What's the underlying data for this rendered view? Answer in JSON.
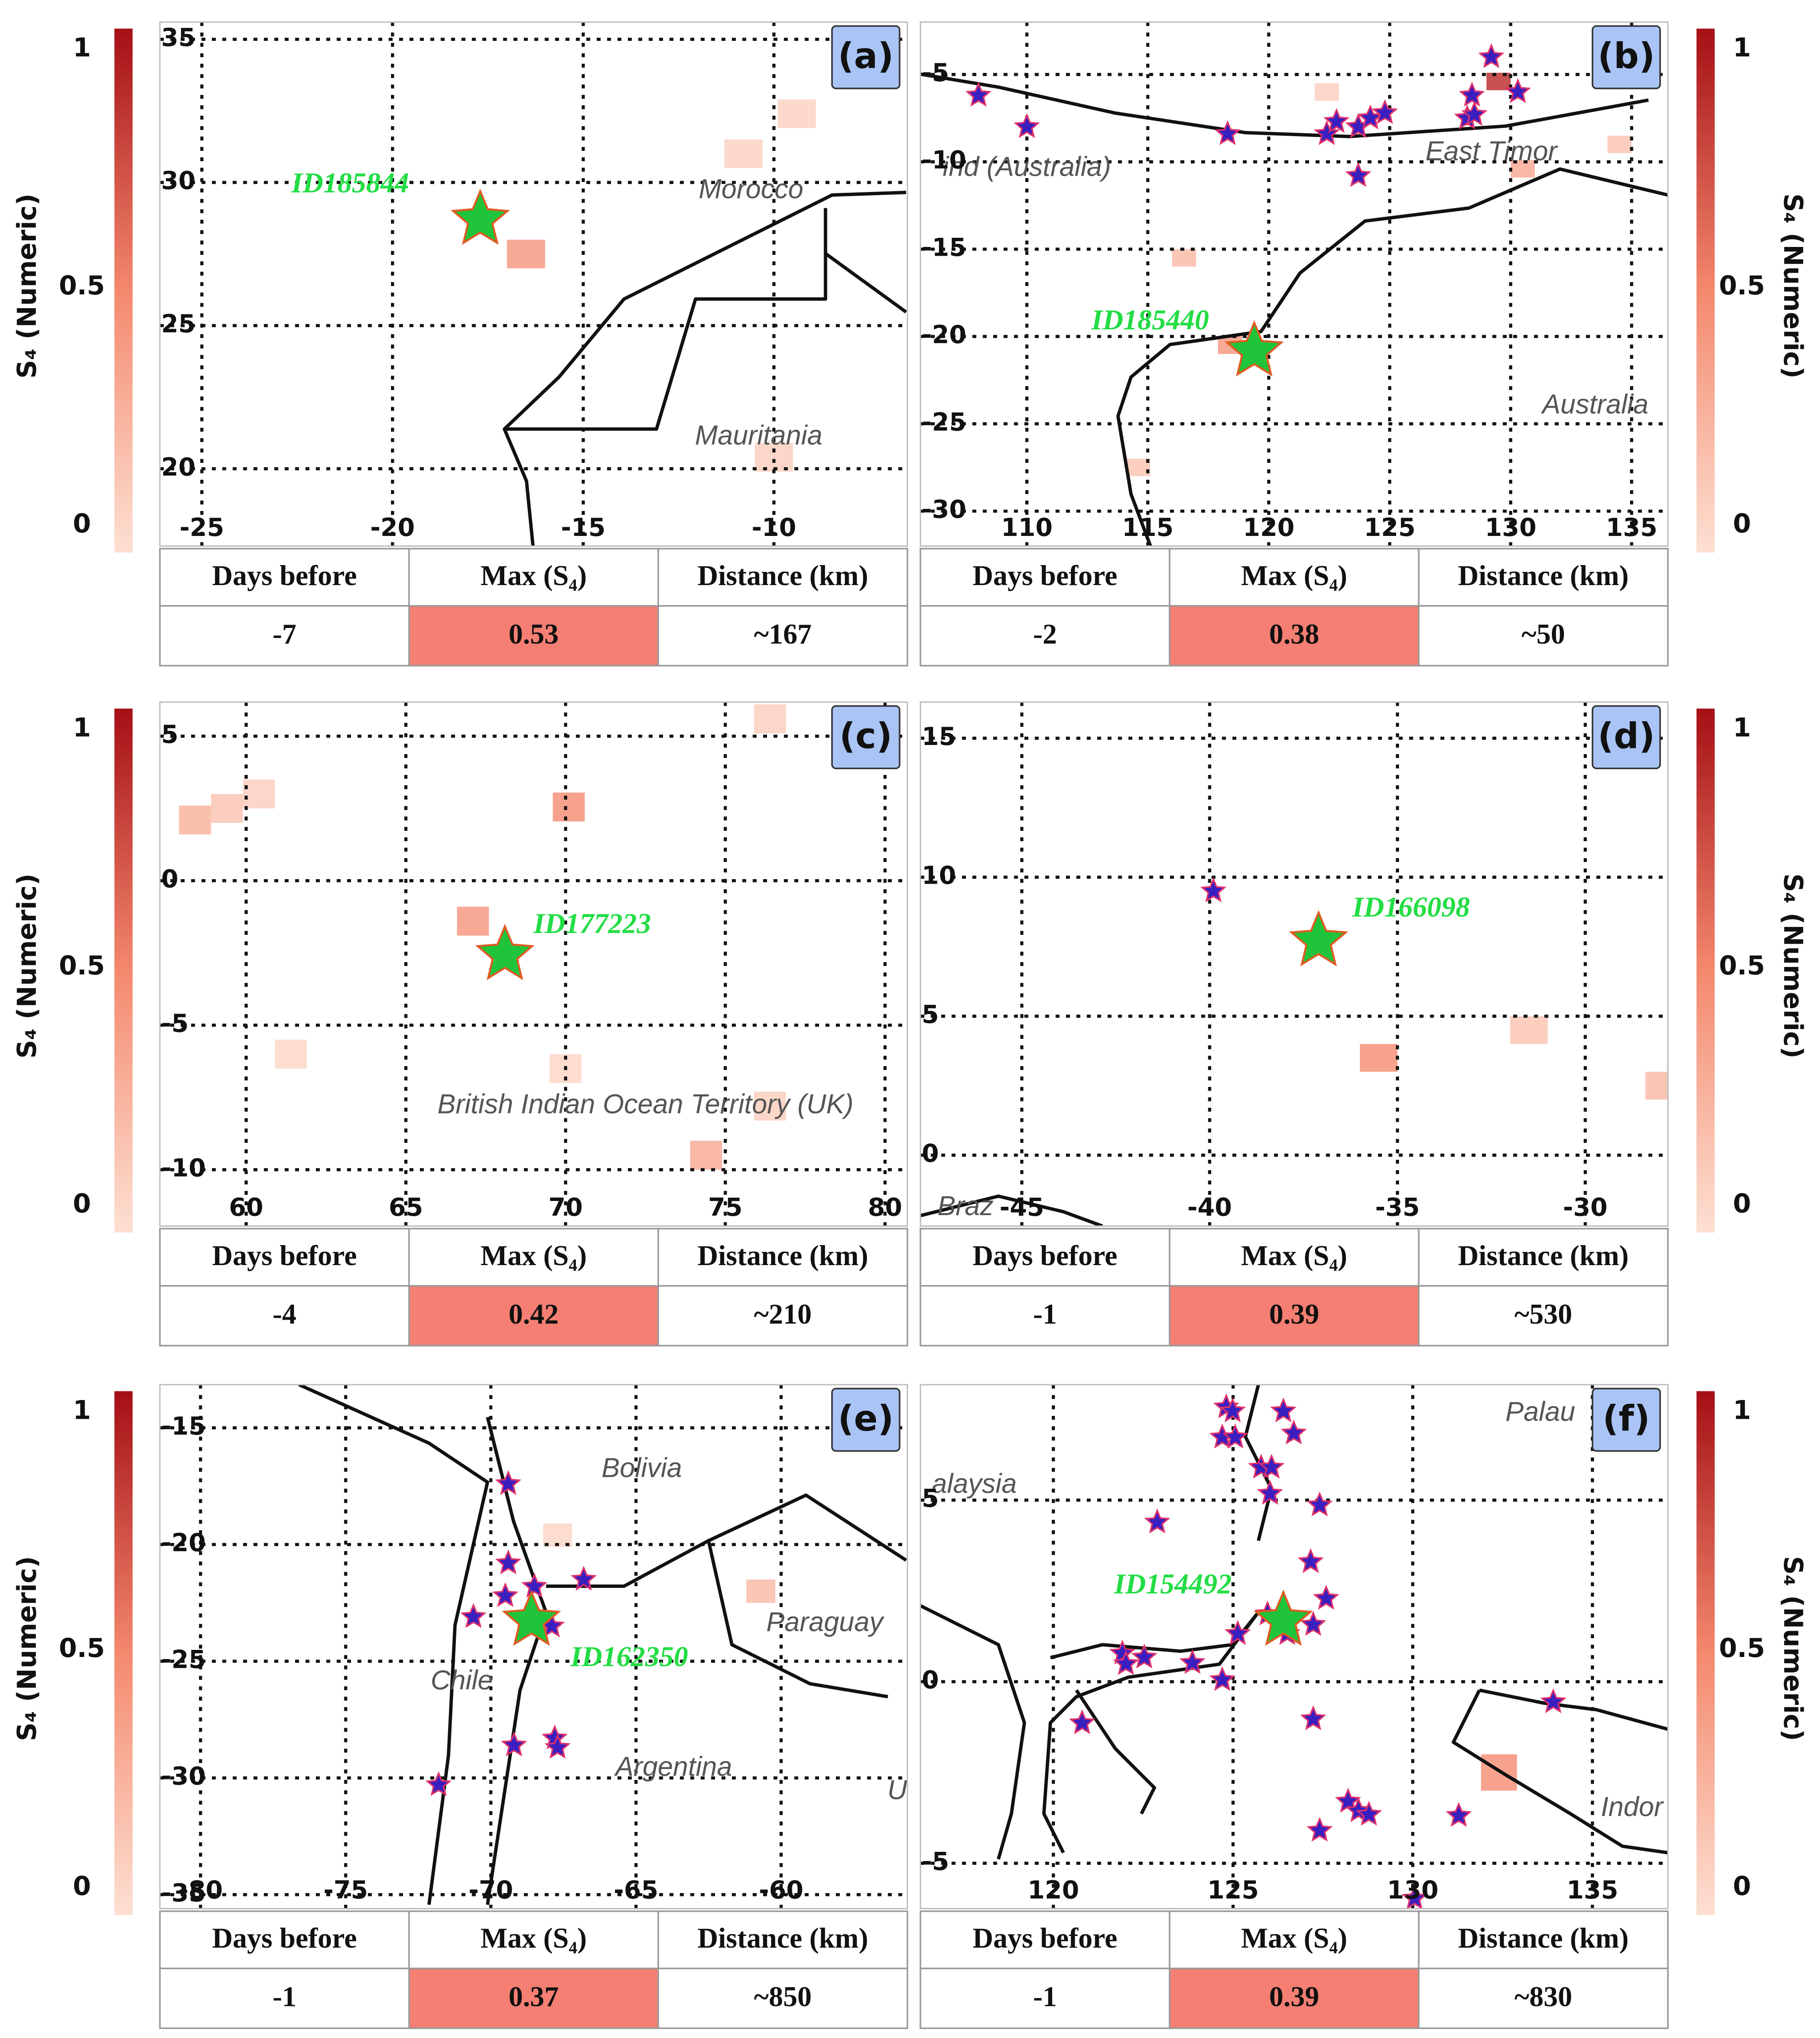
{
  "chart_data": [
    {
      "type": "map",
      "label": "(a)",
      "xlim": [
        -26.1,
        -6.5
      ],
      "ylim": [
        17.3,
        35.6
      ],
      "xticks": [
        -25,
        -20,
        -15,
        -10
      ],
      "yticks": [
        20,
        25,
        30,
        35
      ],
      "colorbar": {
        "label": "S₄ (Numeric)",
        "lim": [
          0,
          1
        ],
        "ticks": [
          0,
          0.5,
          1
        ],
        "side": "left"
      },
      "event": {
        "name": "ID185844",
        "x": -17.7,
        "y": 28.7
      },
      "stars": {
        "x": [],
        "y": []
      },
      "cell_size": 1,
      "cells": {
        "x": [
          -16.5,
          -10.8,
          -9.4,
          -10.0
        ],
        "y": [
          27.5,
          31.0,
          32.4,
          20.4
        ],
        "values": [
          0.4,
          0.08,
          0.08,
          0.1
        ]
      },
      "places": [
        {
          "name": "Morocco",
          "x": -10.6,
          "y": 29.7
        },
        {
          "name": "Mauritania",
          "x": -10.4,
          "y": 21.1
        }
      ],
      "table": {
        "header": [
          "Days before",
          "Max (S₄)",
          "Distance (km)"
        ],
        "row": [
          -7,
          0.53,
          "~167"
        ]
      }
    },
    {
      "type": "map",
      "label": "(b)",
      "xlim": [
        105.6,
        136.5
      ],
      "ylim": [
        -32.0,
        -2.0
      ],
      "xticks": [
        110,
        115,
        120,
        125,
        130,
        135
      ],
      "yticks": [
        -5,
        -10,
        -15,
        -20,
        -25,
        -30
      ],
      "colorbar": {
        "label": "S₄ (Numeric)",
        "lim": [
          0,
          1
        ],
        "ticks": [
          0,
          0.5,
          1
        ],
        "side": "right"
      },
      "event": {
        "name": "ID185440",
        "x": 119.4,
        "y": -20.85
      },
      "stars": {
        "x": [
          108.0,
          110.0,
          118.3,
          122.4,
          122.8,
          123.7,
          124.2,
          124.8,
          123.7,
          128.4,
          128.2,
          128.5,
          129.2,
          130.3
        ],
        "y": [
          -6.2,
          -8.0,
          -8.4,
          -8.4,
          -7.7,
          -8.0,
          -7.5,
          -7.2,
          -10.8,
          -6.2,
          -7.5,
          -7.3,
          -4.0,
          -6.0
        ]
      },
      "cell_size": 1,
      "cells": {
        "x": [
          129.5,
          130.5,
          116.5,
          118.4,
          134.5,
          122.4,
          114.6
        ],
        "y": [
          -5.4,
          -10.4,
          -15.5,
          -20.5,
          -9.0,
          -6.0,
          -27.5
        ],
        "values": [
          0.85,
          0.3,
          0.2,
          0.4,
          0.15,
          0.1,
          0.15
        ]
      },
      "places": [
        {
          "name": "ind (Australia)",
          "x": 110.0,
          "y": -10.4
        },
        {
          "name": "East Timor",
          "x": 129.2,
          "y": -9.5
        },
        {
          "name": "Australia",
          "x": 133.5,
          "y": -24.0
        }
      ],
      "table": {
        "header": [
          "Days before",
          "Max (S₄)",
          "Distance (km)"
        ],
        "row": [
          -2,
          0.38,
          "~50"
        ]
      }
    },
    {
      "type": "map",
      "label": "(c)",
      "xlim": [
        57.3,
        80.7
      ],
      "ylim": [
        -11.95,
        6.18
      ],
      "xticks": [
        60,
        65,
        70,
        75,
        80
      ],
      "yticks": [
        -10,
        -5,
        0,
        5
      ],
      "colorbar": {
        "label": "S₄ (Numeric)",
        "lim": [
          0,
          1
        ],
        "ticks": [
          0,
          0.5,
          1
        ],
        "side": "left"
      },
      "event": {
        "name": "ID177223",
        "x": 68.1,
        "y": -2.57
      },
      "stars": {
        "x": [],
        "y": []
      },
      "cell_size": 1,
      "cells": {
        "x": [
          67.1,
          70.1,
          58.4,
          60.4,
          59.4,
          61.4,
          74.4,
          76.4,
          76.4,
          70.0
        ],
        "y": [
          -1.4,
          2.55,
          2.1,
          3.0,
          2.5,
          -6.0,
          -9.5,
          5.6,
          -7.8,
          -6.5
        ],
        "values": [
          0.4,
          0.45,
          0.25,
          0.1,
          0.15,
          0.05,
          0.3,
          0.1,
          0.1,
          0.05
        ]
      },
      "places": [
        {
          "name": "British Indian Ocean Territory (UK)",
          "x": 72.5,
          "y": -7.8
        }
      ],
      "table": {
        "header": [
          "Days before",
          "Max (S₄)",
          "Distance (km)"
        ],
        "row": [
          -4,
          0.42,
          "~210"
        ]
      }
    },
    {
      "type": "map",
      "label": "(d)",
      "xlim": [
        -47.7,
        -27.8
      ],
      "ylim": [
        -2.55,
        16.3
      ],
      "xticks": [
        -45,
        -40,
        -35,
        -30
      ],
      "yticks": [
        0,
        5,
        10,
        15
      ],
      "colorbar": {
        "label": "S₄ (Numeric)",
        "lim": [
          0,
          1
        ],
        "ticks": [
          0,
          0.5,
          1
        ],
        "side": "right"
      },
      "event": {
        "name": "ID166098",
        "x": -37.1,
        "y": 7.7
      },
      "stars": {
        "x": [
          -39.9
        ],
        "y": [
          9.5
        ]
      },
      "cell_size": 1,
      "cells": {
        "x": [
          -35.5,
          -31.5,
          -27.9
        ],
        "y": [
          3.5,
          4.5,
          2.5
        ],
        "values": [
          0.45,
          0.15,
          0.2
        ]
      },
      "places": [
        {
          "name": "Braz",
          "x": -46.5,
          "y": -1.9
        }
      ],
      "table": {
        "header": [
          "Days before",
          "Max (S₄)",
          "Distance (km)"
        ],
        "row": [
          -1,
          0.39,
          "~530"
        ]
      }
    },
    {
      "type": "map",
      "label": "(e)",
      "xlim": [
        -81.4,
        -55.65
      ],
      "ylim": [
        -35.6,
        -13.15
      ],
      "xticks": [
        -80,
        -75,
        -70,
        -65,
        -60
      ],
      "yticks": [
        -15,
        -20,
        -25,
        -30,
        -35
      ],
      "colorbar": {
        "label": "S₄ (Numeric)",
        "lim": [
          0,
          1
        ],
        "ticks": [
          0,
          0.5,
          1
        ],
        "side": "left"
      },
      "event": {
        "name": "ID162350",
        "x": -68.6,
        "y": -23.26
      },
      "stars": {
        "x": [
          -69.4,
          -69.4,
          -69.5,
          -68.5,
          -66.8,
          -70.6,
          -69.2,
          -67.8,
          -67.7,
          -71.8,
          -67.9
        ],
        "y": [
          -17.4,
          -20.8,
          -22.2,
          -21.8,
          -21.5,
          -23.1,
          -28.6,
          -28.3,
          -28.7,
          -30.3,
          -23.5
        ]
      },
      "cell_size": 1,
      "cells": {
        "x": [
          -60.7,
          -67.7
        ],
        "y": [
          -22.0,
          -19.6
        ],
        "values": [
          0.2,
          0.05
        ]
      },
      "places": [
        {
          "name": "Bolivia",
          "x": -64.8,
          "y": -16.8
        },
        {
          "name": "Paraguay",
          "x": -58.5,
          "y": -23.4
        },
        {
          "name": "Chile",
          "x": -71.0,
          "y": -25.9
        },
        {
          "name": "Argentina",
          "x": -63.7,
          "y": -29.6
        },
        {
          "name": "U",
          "x": -56.0,
          "y": -30.6
        }
      ],
      "table": {
        "header": [
          "Days before",
          "Max (S₄)",
          "Distance (km)"
        ],
        "row": [
          -1,
          0.37,
          "~850"
        ]
      }
    },
    {
      "type": "map",
      "label": "(f)",
      "xlim": [
        116.3,
        137.1
      ],
      "ylim": [
        -6.25,
        8.18
      ],
      "xticks": [
        120,
        125,
        130,
        135
      ],
      "yticks": [
        -5,
        0,
        5
      ],
      "colorbar": {
        "label": "S₄ (Numeric)",
        "lim": [
          0,
          1
        ],
        "ticks": [
          0,
          0.5,
          1
        ],
        "side": "right"
      },
      "event": {
        "name": "ID154492",
        "x": 126.4,
        "y": 1.68
      },
      "stars": {
        "x": [
          124.81,
          124.99,
          124.7,
          125.06,
          126.4,
          126.69,
          125.78,
          126.07,
          126.03,
          127.41,
          122.89,
          127.16,
          127.59,
          125.96,
          126.51,
          127.23,
          125.13,
          121.92,
          122.53,
          122.02,
          123.87,
          124.7,
          120.8,
          127.23,
          133.91,
          128.2,
          128.49,
          128.78,
          131.28,
          127.41,
          130.05
        ],
        "y": [
          7.56,
          7.45,
          6.73,
          6.73,
          7.45,
          6.84,
          5.9,
          5.9,
          5.18,
          4.86,
          4.39,
          3.3,
          2.29,
          1.86,
          1.32,
          1.57,
          1.32,
          0.78,
          0.67,
          0.49,
          0.52,
          0.05,
          -1.14,
          -1.03,
          -0.56,
          -3.3,
          -3.56,
          -3.66,
          -3.69,
          -4.1,
          -5.97
        ]
      },
      "cell_size": 1,
      "cells": {
        "x": [
          132.4
        ],
        "y": [
          -2.5
        ],
        "values": [
          0.45
        ]
      },
      "places": [
        {
          "name": "Palau",
          "x": 133.55,
          "y": 7.38
        },
        {
          "name": "alaysia",
          "x": 117.8,
          "y": 5.4
        },
        {
          "name": "Indor",
          "x": 136.1,
          "y": -3.5
        }
      ],
      "table": {
        "header": [
          "Days before",
          "Max (S₄)",
          "Distance (km)"
        ],
        "row": [
          -1,
          0.39,
          "~830"
        ]
      }
    }
  ]
}
